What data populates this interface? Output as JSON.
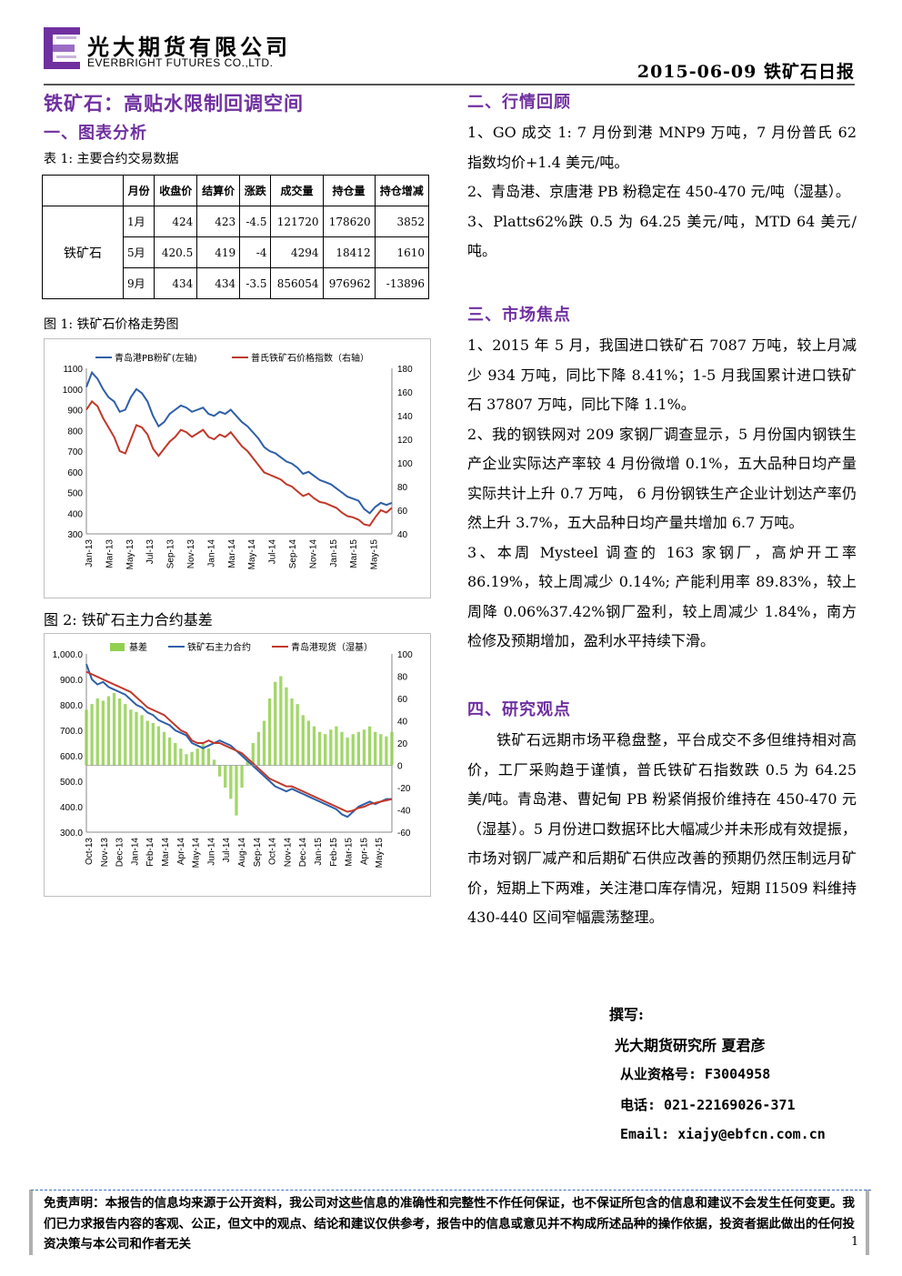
{
  "header": {
    "company_cn": "光大期货有限公司",
    "company_en": "EVERBRIGHT FUTURES CO.,LTD.",
    "date_report": "2015-06-09 铁矿石日报",
    "logo_color": "#7030a0"
  },
  "title": "铁矿石：高贴水限制回调空间",
  "sections": {
    "s1": "一、图表分析",
    "s2": "二、行情回顾",
    "s3": "三、市场焦点",
    "s4": "四、研究观点"
  },
  "table1": {
    "caption": "表 1: 主要合约交易数据",
    "headers": [
      "月份",
      "收盘价",
      "结算价",
      "涨跌",
      "成交量",
      "持仓量",
      "持仓增减"
    ],
    "commodity": "铁矿石",
    "rows": [
      [
        "1月",
        "424",
        "423",
        "-4.5",
        "121720",
        "178620",
        "3852"
      ],
      [
        "5月",
        "420.5",
        "419",
        "-4",
        "4294",
        "18412",
        "1610"
      ],
      [
        "9月",
        "434",
        "434",
        "-3.5",
        "856054",
        "976962",
        "-13896"
      ]
    ]
  },
  "chart_data": [
    {
      "type": "line",
      "caption": "图 1: 铁矿石价格走势图",
      "series": [
        {
          "name": "青岛港PB粉矿(左轴)",
          "color": "#2e5fa8",
          "axis": "left",
          "values": [
            1010,
            1080,
            1050,
            1000,
            960,
            940,
            890,
            900,
            960,
            1000,
            980,
            940,
            870,
            820,
            840,
            880,
            900,
            920,
            910,
            890,
            900,
            910,
            880,
            870,
            890,
            880,
            900,
            870,
            840,
            820,
            790,
            760,
            720,
            700,
            690,
            670,
            650,
            640,
            620,
            590,
            600,
            580,
            560,
            550,
            540,
            520,
            500,
            480,
            470,
            460,
            420,
            400,
            430,
            450,
            440,
            450
          ]
        },
        {
          "name": "普氏铁矿石价格指数（右轴）",
          "color": "#c0392b",
          "axis": "right",
          "values": [
            145,
            152,
            148,
            138,
            130,
            122,
            110,
            108,
            120,
            132,
            130,
            124,
            112,
            106,
            112,
            118,
            122,
            128,
            126,
            122,
            125,
            128,
            122,
            120,
            124,
            122,
            126,
            120,
            114,
            110,
            104,
            98,
            92,
            90,
            88,
            86,
            82,
            80,
            76,
            72,
            74,
            70,
            67,
            66,
            64,
            62,
            58,
            55,
            54,
            52,
            48,
            47,
            54,
            60,
            58,
            62
          ]
        }
      ],
      "x_ticks": [
        "Jan-13",
        "Mar-13",
        "May-13",
        "Jul-13",
        "Sep-13",
        "Nov-13",
        "Jan-14",
        "Mar-14",
        "May-14",
        "Jul-14",
        "Sep-14",
        "Nov-14",
        "Jan-15",
        "Mar-15",
        "May-15"
      ],
      "y_left_ticks": [
        "1100",
        "1000",
        "900",
        "800",
        "700",
        "600",
        "500",
        "400",
        "300"
      ],
      "y_right_ticks": [
        "180",
        "160",
        "140",
        "120",
        "100",
        "80",
        "60",
        "40"
      ],
      "ylim_left": [
        300,
        1100
      ],
      "ylim_right": [
        40,
        180
      ]
    },
    {
      "type": "bar+line",
      "caption": "图 2: 铁矿石主力合约基差",
      "series": [
        {
          "name": "基差",
          "color": "#92d050",
          "axis": "right",
          "kind": "bar",
          "values": [
            50,
            55,
            60,
            58,
            62,
            65,
            60,
            55,
            50,
            48,
            45,
            40,
            38,
            35,
            30,
            25,
            20,
            15,
            10,
            12,
            15,
            20,
            15,
            5,
            -10,
            -20,
            -30,
            -45,
            -20,
            5,
            20,
            30,
            40,
            60,
            75,
            80,
            70,
            60,
            55,
            45,
            40,
            35,
            30,
            28,
            32,
            35,
            30,
            25,
            28,
            30,
            32,
            35,
            30,
            28,
            26,
            30
          ]
        },
        {
          "name": "铁矿石主力合约",
          "color": "#2e5fa8",
          "axis": "left",
          "kind": "line",
          "values": [
            960,
            900,
            880,
            890,
            870,
            860,
            850,
            840,
            820,
            800,
            790,
            770,
            760,
            740,
            730,
            720,
            700,
            690,
            680,
            650,
            640,
            630,
            640,
            650,
            660,
            650,
            640,
            620,
            600,
            580,
            560,
            540,
            520,
            500,
            480,
            470,
            460,
            470,
            460,
            450,
            440,
            430,
            420,
            410,
            400,
            390,
            370,
            360,
            380,
            400,
            410,
            420,
            410,
            420,
            430,
            430
          ]
        },
        {
          "name": "青岛港现货（湿基）",
          "color": "#c0392b",
          "axis": "left",
          "kind": "line",
          "values": [
            930,
            920,
            910,
            900,
            890,
            880,
            870,
            860,
            850,
            830,
            810,
            790,
            780,
            770,
            760,
            740,
            720,
            700,
            690,
            660,
            650,
            650,
            660,
            650,
            650,
            640,
            630,
            620,
            610,
            590,
            570,
            550,
            530,
            510,
            500,
            490,
            480,
            480,
            470,
            460,
            450,
            440,
            430,
            420,
            410,
            400,
            390,
            380,
            385,
            395,
            400,
            410,
            415,
            420,
            425,
            430
          ]
        }
      ],
      "x_ticks": [
        "Oct-13",
        "Nov-13",
        "Dec-13",
        "Jan-14",
        "Feb-14",
        "Mar-14",
        "Apr-14",
        "May-14",
        "Jun-14",
        "Jul-14",
        "Aug-14",
        "Sep-14",
        "Oct-14",
        "Nov-14",
        "Dec-14",
        "Jan-15",
        "Feb-15",
        "Mar-15",
        "Apr-15",
        "May-15"
      ],
      "y_left_ticks": [
        "1,000.0",
        "900.0",
        "800.0",
        "700.0",
        "600.0",
        "500.0",
        "400.0",
        "300.0"
      ],
      "y_right_ticks": [
        "100",
        "80",
        "60",
        "40",
        "20",
        "0",
        "-20",
        "-40",
        "-60"
      ],
      "ylim_left": [
        300,
        1000
      ],
      "ylim_right": [
        -60,
        100
      ]
    }
  ],
  "review": [
    "1、GO 成交 1: 7 月份到港 MNP9 万吨，7 月份普氏 62 指数均价+1.4 美元/吨。",
    "2、青岛港、京唐港 PB 粉稳定在 450-470 元/吨（湿基）。",
    "3、Platts62%跌 0.5 为 64.25 美元/吨，MTD 64 美元/吨。"
  ],
  "focus": [
    "1、2015 年 5 月，我国进口铁矿石 7087 万吨，较上月减少 934 万吨，同比下降 8.41%；1-5 月我国累计进口铁矿石 37807 万吨，同比下降 1.1%。",
    "2、我的钢铁网对 209 家钢厂调查显示，5 月份国内钢铁生产企业实际达产率较 4 月份微增 0.1%，五大品种日均产量实际共计上升 0.7 万吨， 6 月份钢铁生产企业计划达产率仍然上升 3.7%，五大品种日均产量共增加 6.7 万吨。",
    "3、本周 Mysteel 调查的 163 家钢厂，高炉开工率 86.19%，较上周减少 0.14%; 产能利用率 89.83%，较上周降 0.06%37.42%钢厂盈利，较上周减少 1.84%，南方检修及预期增加，盈利水平持续下滑。"
  ],
  "opinion": "铁矿石远期市场平稳盘整，平台成交不多但维持相对高价，工厂采购趋于谨慎，普氏铁矿石指数跌 0.5 为 64.25 美/吨。青岛港、曹妃甸 PB 粉紧俏报价维持在 450-470 元（湿基）。5 月份进口数据环比大幅减少并未形成有效提振，市场对钢厂减产和后期矿石供应改善的预期仍然压制远月矿价，短期上下两难，关注港口库存情况，短期 I1509 料维持 430-440 区间窄幅震荡整理。",
  "author": {
    "label": "撰写:",
    "org": "光大期货研究所 夏君彦",
    "license": "从业资格号: F3004958",
    "phone": "电话: 021-22169026-371",
    "email": "Email: xiajy@ebfcn.com.cn"
  },
  "footer": {
    "disclaimer": "免责声明：本报告的信息均来源于公开资料，我公司对这些信息的准确性和完整性不作任何保证，也不保证所包含的信息和建议不会发生任何变更。我们已力求报告内容的客观、公正，但文中的观点、结论和建议仅供参考，报告中的信息或意见并不构成所述品种的操作依据，投资者据此做出的任何投资决策与本公司和作者无关",
    "page": "1"
  }
}
